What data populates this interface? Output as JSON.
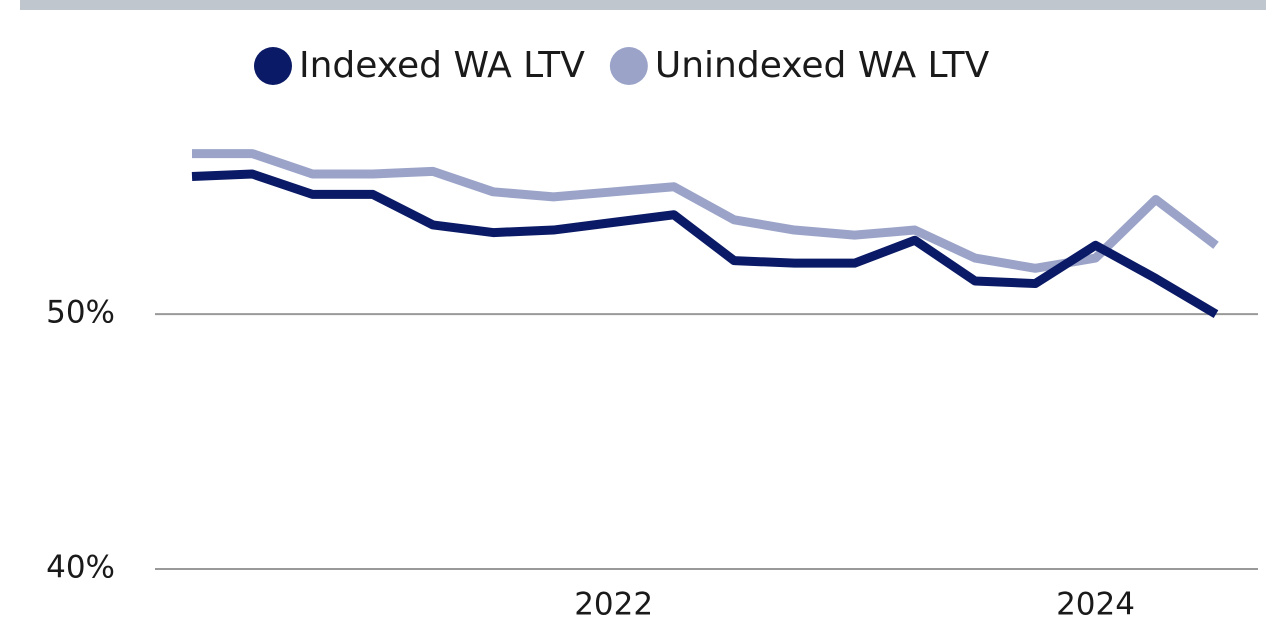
{
  "chart_data": {
    "type": "line",
    "categories": [
      null,
      null,
      null,
      null,
      null,
      null,
      null,
      "2022",
      null,
      null,
      null,
      null,
      null,
      null,
      null,
      "2024",
      null,
      null
    ],
    "series": [
      {
        "name": "Indexed WA LTV",
        "color": "#0b1a66",
        "values": [
          55.4,
          55.5,
          54.7,
          54.7,
          53.5,
          53.2,
          53.3,
          53.6,
          53.9,
          52.1,
          52.0,
          52.0,
          52.9,
          51.3,
          51.2,
          52.7,
          51.4,
          50.0
        ]
      },
      {
        "name": "Unindexed WA LTV",
        "color": "#9ba4c8",
        "values": [
          56.3,
          56.3,
          55.5,
          55.5,
          55.6,
          54.8,
          54.6,
          54.8,
          55.0,
          53.7,
          53.3,
          53.1,
          53.3,
          52.2,
          51.8,
          52.2,
          54.5,
          52.7
        ]
      }
    ],
    "ylim": [
      40,
      57.5
    ],
    "yticks": [
      {
        "value": 40,
        "label": "40%"
      },
      {
        "value": 50,
        "label": "50%"
      }
    ],
    "grid": true,
    "legend": "top"
  }
}
